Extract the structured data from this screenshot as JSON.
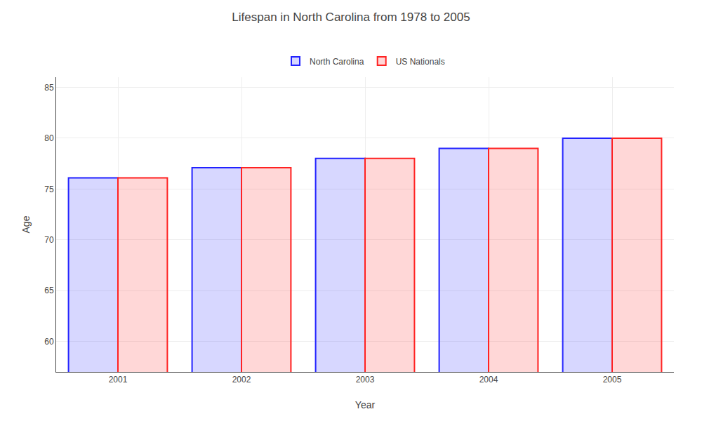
{
  "chart_data": {
    "type": "bar",
    "title": "Lifespan in North Carolina from 1978 to 2005",
    "xlabel": "Year",
    "ylabel": "Age",
    "categories": [
      "2001",
      "2002",
      "2003",
      "2004",
      "2005"
    ],
    "series": [
      {
        "name": "North Carolina",
        "color": "#2222ff",
        "values": [
          76.1,
          77.1,
          78.0,
          79.0,
          80.0
        ]
      },
      {
        "name": "US Nationals",
        "color": "#ff2222",
        "values": [
          76.1,
          77.1,
          78.0,
          79.0,
          80.0
        ]
      }
    ],
    "ylim": [
      57,
      86
    ],
    "yticks": [
      60,
      65,
      70,
      75,
      80,
      85
    ],
    "grid": true,
    "legend": "top"
  }
}
